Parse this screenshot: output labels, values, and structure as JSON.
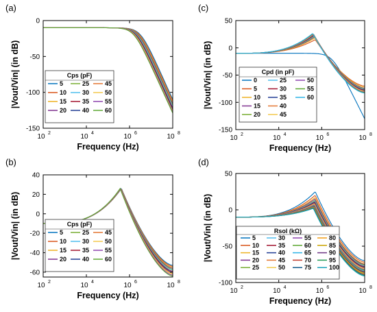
{
  "series_palette": [
    "#0072bd",
    "#d95319",
    "#edb120",
    "#7e2f8e",
    "#77ac30",
    "#4dbeee",
    "#a2142f",
    "#1f3a93",
    "#e3742f",
    "#f2c94c",
    "#8e44ad",
    "#5da832",
    "#2bb3e6",
    "#c0392b",
    "#0e5a8a",
    "#f39c12",
    "#c9a400",
    "#6c3483",
    "#229954",
    "#17a2b8"
  ],
  "chart_data": [
    {
      "panel_label": "(a)",
      "type": "line",
      "xlabel": "Frequency (Hz)",
      "ylabel": "|Vout/Vin| (in dB)",
      "x_scale": "log",
      "xlim": [
        100,
        100000000
      ],
      "ylim": [
        -150,
        0
      ],
      "xtick_exponents": [
        "2",
        "4",
        "6",
        "8"
      ],
      "yticks": [
        "-150",
        "-100",
        "-50",
        "0"
      ],
      "legend": {
        "title": "Cps (pF)",
        "placement": "lower-left",
        "columns": 3,
        "entries": [
          "5",
          "10",
          "15",
          "20",
          "25",
          "30",
          "35",
          "40",
          "45",
          "50",
          "55",
          "60"
        ]
      },
      "curve_model": "lowpass",
      "series": [
        {
          "name": "5",
          "passband_db": -10,
          "corner_hz": 3200000,
          "value_at_1e8_db": -110
        },
        {
          "name": "10",
          "passband_db": -10,
          "corner_hz": 2900000,
          "value_at_1e8_db": -112
        },
        {
          "name": "15",
          "passband_db": -10,
          "corner_hz": 2700000,
          "value_at_1e8_db": -114
        },
        {
          "name": "20",
          "passband_db": -10,
          "corner_hz": 2500000,
          "value_at_1e8_db": -116
        },
        {
          "name": "25",
          "passband_db": -10,
          "corner_hz": 2300000,
          "value_at_1e8_db": -118
        },
        {
          "name": "30",
          "passband_db": -10,
          "corner_hz": 2150000,
          "value_at_1e8_db": -120
        },
        {
          "name": "35",
          "passband_db": -10,
          "corner_hz": 2000000,
          "value_at_1e8_db": -122
        },
        {
          "name": "40",
          "passband_db": -10,
          "corner_hz": 1900000,
          "value_at_1e8_db": -124
        },
        {
          "name": "45",
          "passband_db": -10,
          "corner_hz": 1800000,
          "value_at_1e8_db": -126
        },
        {
          "name": "50",
          "passband_db": -10,
          "corner_hz": 1700000,
          "value_at_1e8_db": -127
        },
        {
          "name": "55",
          "passband_db": -10,
          "corner_hz": 1600000,
          "value_at_1e8_db": -128
        },
        {
          "name": "60",
          "passband_db": -10,
          "corner_hz": 1550000,
          "value_at_1e8_db": -129
        }
      ]
    },
    {
      "panel_label": "(b)",
      "type": "line",
      "xlabel": "Frequency (Hz)",
      "ylabel": "|Vout/Vin| (in dB)",
      "x_scale": "log",
      "xlim": [
        100,
        100000000
      ],
      "ylim": [
        -65,
        40
      ],
      "xtick_exponents": [
        "2",
        "4",
        "6",
        "8"
      ],
      "yticks": [
        "-60",
        "-40",
        "-20",
        "0",
        "20",
        "40"
      ],
      "legend": {
        "title": "Cps (pF)",
        "placement": "lower-left",
        "columns": 3,
        "entries": [
          "5",
          "10",
          "15",
          "20",
          "25",
          "30",
          "35",
          "40",
          "45",
          "50",
          "55",
          "60"
        ]
      },
      "curve_model": "peak",
      "series": [
        {
          "name": "5",
          "low_db": -10,
          "peak_hz": 420000,
          "peak_db": 26,
          "value_at_1e8_db": -53
        },
        {
          "name": "10",
          "low_db": -10,
          "peak_hz": 415000,
          "peak_db": 26,
          "value_at_1e8_db": -54
        },
        {
          "name": "15",
          "low_db": -10,
          "peak_hz": 410000,
          "peak_db": 26,
          "value_at_1e8_db": -55
        },
        {
          "name": "20",
          "low_db": -10,
          "peak_hz": 405000,
          "peak_db": 26,
          "value_at_1e8_db": -56
        },
        {
          "name": "25",
          "low_db": -10,
          "peak_hz": 400000,
          "peak_db": 26,
          "value_at_1e8_db": -57
        },
        {
          "name": "30",
          "low_db": -10,
          "peak_hz": 395000,
          "peak_db": 26,
          "value_at_1e8_db": -58
        },
        {
          "name": "35",
          "low_db": -10,
          "peak_hz": 390000,
          "peak_db": 26,
          "value_at_1e8_db": -59
        },
        {
          "name": "40",
          "low_db": -10,
          "peak_hz": 385000,
          "peak_db": 26,
          "value_at_1e8_db": -60
        },
        {
          "name": "45",
          "low_db": -10,
          "peak_hz": 380000,
          "peak_db": 26,
          "value_at_1e8_db": -61
        },
        {
          "name": "50",
          "low_db": -10,
          "peak_hz": 375000,
          "peak_db": 26,
          "value_at_1e8_db": -62
        },
        {
          "name": "55",
          "low_db": -10,
          "peak_hz": 370000,
          "peak_db": 26,
          "value_at_1e8_db": -63
        },
        {
          "name": "60",
          "low_db": -10,
          "peak_hz": 365000,
          "peak_db": 26,
          "value_at_1e8_db": -64
        }
      ]
    },
    {
      "panel_label": "(c)",
      "type": "line",
      "xlabel": "Frequency (Hz)",
      "ylabel": "|Vout/Vin| (in dB)",
      "x_scale": "log",
      "xlim": [
        100,
        100000000
      ],
      "ylim": [
        -150,
        50
      ],
      "xtick_exponents": [
        "2",
        "4",
        "6",
        "8"
      ],
      "yticks": [
        "-150",
        "-100",
        "-50",
        "0",
        "50"
      ],
      "legend": {
        "title": "Cpd (in pF)",
        "placement": "center-left",
        "columns": 3,
        "entries": [
          "0",
          "5",
          "10",
          "15",
          "20",
          "25",
          "30",
          "35",
          "40",
          "45",
          "50",
          "55",
          "60"
        ]
      },
      "curve_model": "mixed",
      "series": [
        {
          "name": "0",
          "model": "lowpass",
          "passband_db": -10,
          "corner_hz": 3000000,
          "value_at_1e8_db": -130
        },
        {
          "name": "5",
          "model": "peak",
          "low_db": -10,
          "peak_hz": 500000,
          "peak_db": 15,
          "value_at_1e8_db": -70
        },
        {
          "name": "10",
          "model": "peak",
          "low_db": -10,
          "peak_hz": 480000,
          "peak_db": 18,
          "value_at_1e8_db": -72
        },
        {
          "name": "15",
          "model": "peak",
          "low_db": -10,
          "peak_hz": 470000,
          "peak_db": 20,
          "value_at_1e8_db": -74
        },
        {
          "name": "20",
          "model": "peak",
          "low_db": -10,
          "peak_hz": 460000,
          "peak_db": 21,
          "value_at_1e8_db": -75
        },
        {
          "name": "25",
          "model": "peak",
          "low_db": -10,
          "peak_hz": 450000,
          "peak_db": 22,
          "value_at_1e8_db": -76
        },
        {
          "name": "30",
          "model": "peak",
          "low_db": -10,
          "peak_hz": 440000,
          "peak_db": 23,
          "value_at_1e8_db": -77
        },
        {
          "name": "35",
          "model": "peak",
          "low_db": -10,
          "peak_hz": 430000,
          "peak_db": 24,
          "value_at_1e8_db": -78
        },
        {
          "name": "40",
          "model": "peak",
          "low_db": -10,
          "peak_hz": 420000,
          "peak_db": 24.5,
          "value_at_1e8_db": -79
        },
        {
          "name": "45",
          "model": "peak",
          "low_db": -10,
          "peak_hz": 410000,
          "peak_db": 25,
          "value_at_1e8_db": -80
        },
        {
          "name": "50",
          "model": "peak",
          "low_db": -10,
          "peak_hz": 400000,
          "peak_db": 25.5,
          "value_at_1e8_db": -81
        },
        {
          "name": "55",
          "model": "peak",
          "low_db": -10,
          "peak_hz": 390000,
          "peak_db": 26,
          "value_at_1e8_db": -82
        },
        {
          "name": "60",
          "model": "peak",
          "low_db": -10,
          "peak_hz": 380000,
          "peak_db": 26.5,
          "value_at_1e8_db": -83
        }
      ]
    },
    {
      "panel_label": "(d)",
      "type": "line",
      "xlabel": "Frequency (Hz)",
      "ylabel": "|Vout/Vin| (in dB)",
      "x_scale": "log",
      "xlim": [
        100,
        100000000
      ],
      "ylim": [
        -100,
        50
      ],
      "xtick_exponents": [
        "2",
        "4",
        "6",
        "8"
      ],
      "yticks": [
        "-100",
        "-50",
        "0",
        "50"
      ],
      "legend": {
        "title": "Rsol (kΩ)",
        "placement": "lower-center",
        "columns": 4,
        "entries": [
          "5",
          "10",
          "15",
          "20",
          "25",
          "30",
          "35",
          "40",
          "45",
          "50",
          "55",
          "60",
          "65",
          "70",
          "75",
          "80",
          "85",
          "90",
          "95",
          "100"
        ]
      },
      "curve_model": "peak",
      "series": [
        {
          "name": "5",
          "low_db": -10,
          "peak_hz": 500000,
          "peak_db": 25,
          "value_at_1e8_db": -70
        },
        {
          "name": "10",
          "low_db": -10,
          "peak_hz": 495000,
          "peak_db": 20,
          "value_at_1e8_db": -72
        },
        {
          "name": "15",
          "low_db": -10,
          "peak_hz": 490000,
          "peak_db": 17,
          "value_at_1e8_db": -74
        },
        {
          "name": "20",
          "low_db": -10,
          "peak_hz": 485000,
          "peak_db": 15,
          "value_at_1e8_db": -75
        },
        {
          "name": "25",
          "low_db": -10,
          "peak_hz": 480000,
          "peak_db": 13,
          "value_at_1e8_db": -76
        },
        {
          "name": "30",
          "low_db": -10,
          "peak_hz": 475000,
          "peak_db": 12,
          "value_at_1e8_db": -77
        },
        {
          "name": "35",
          "low_db": -10,
          "peak_hz": 470000,
          "peak_db": 11,
          "value_at_1e8_db": -78
        },
        {
          "name": "40",
          "low_db": -10,
          "peak_hz": 465000,
          "peak_db": 10,
          "value_at_1e8_db": -79
        },
        {
          "name": "45",
          "low_db": -10,
          "peak_hz": 460000,
          "peak_db": 9,
          "value_at_1e8_db": -80
        },
        {
          "name": "50",
          "low_db": -10,
          "peak_hz": 455000,
          "peak_db": 8,
          "value_at_1e8_db": -81
        },
        {
          "name": "55",
          "low_db": -10,
          "peak_hz": 450000,
          "peak_db": 7,
          "value_at_1e8_db": -82
        },
        {
          "name": "60",
          "low_db": -10,
          "peak_hz": 445000,
          "peak_db": 6,
          "value_at_1e8_db": -83
        },
        {
          "name": "65",
          "low_db": -10,
          "peak_hz": 440000,
          "peak_db": 5.5,
          "value_at_1e8_db": -84
        },
        {
          "name": "70",
          "low_db": -10,
          "peak_hz": 435000,
          "peak_db": 5,
          "value_at_1e8_db": -85
        },
        {
          "name": "75",
          "low_db": -10,
          "peak_hz": 430000,
          "peak_db": 4.5,
          "value_at_1e8_db": -86
        },
        {
          "name": "80",
          "low_db": -10,
          "peak_hz": 425000,
          "peak_db": 4,
          "value_at_1e8_db": -87
        },
        {
          "name": "85",
          "low_db": -10,
          "peak_hz": 420000,
          "peak_db": 3.5,
          "value_at_1e8_db": -88
        },
        {
          "name": "90",
          "low_db": -10,
          "peak_hz": 415000,
          "peak_db": 3,
          "value_at_1e8_db": -89
        },
        {
          "name": "95",
          "low_db": -10,
          "peak_hz": 410000,
          "peak_db": 2.5,
          "value_at_1e8_db": -90
        },
        {
          "name": "100",
          "low_db": -10,
          "peak_hz": 405000,
          "peak_db": 2,
          "value_at_1e8_db": -91
        }
      ]
    }
  ]
}
